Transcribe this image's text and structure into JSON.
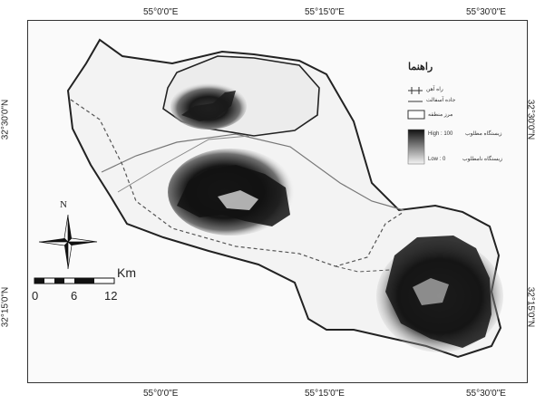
{
  "map": {
    "coords_top": [
      "55°0'0\"E",
      "55°15'0\"E",
      "55°30'0\"E"
    ],
    "coords_bottom": [
      "55°0'0\"E",
      "55°15'0\"E",
      "55°30'0\"E"
    ],
    "coords_left": [
      "32°30'0\"N",
      "32°15'0\"N"
    ],
    "coords_right": [
      "32°30'0\"N",
      "32°15'0\"N"
    ]
  },
  "legend": {
    "title": "راهنما",
    "railway": "راه آهن",
    "road": "جاده آسفالت",
    "study_area": "مرز منطقه",
    "high": "High : 100",
    "high_desc": "زیستگاه مطلوب",
    "low": "Low : 0",
    "low_desc": "زیستگاه نامطلوب"
  },
  "north_arrow": {
    "label": "N"
  },
  "scale_bar": {
    "ticks": [
      "0",
      "6",
      "12"
    ],
    "unit": "Km"
  },
  "colors": {
    "high": "#111111",
    "low": "#f2f2f2",
    "boundary": "#222222",
    "road": "#777777"
  }
}
